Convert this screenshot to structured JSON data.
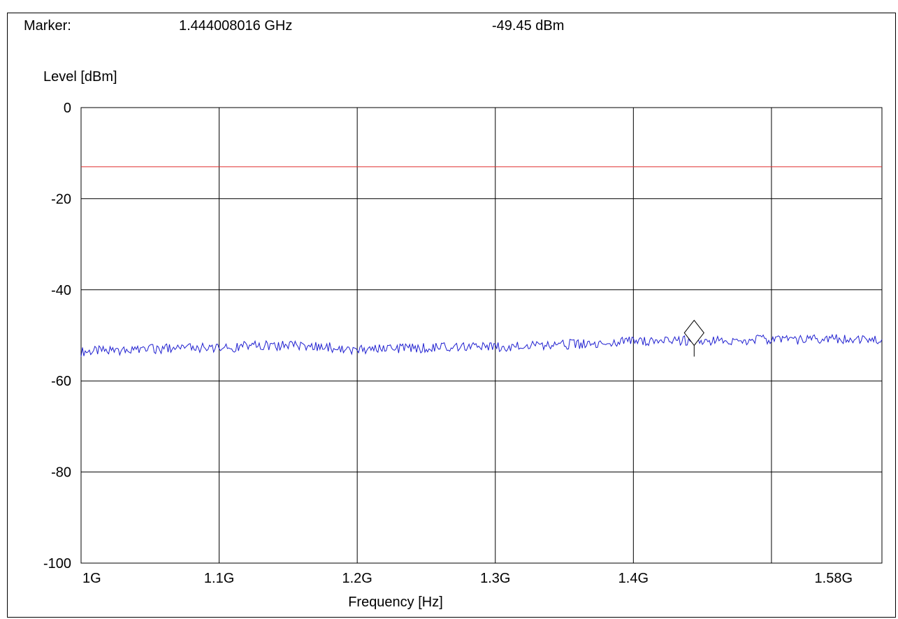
{
  "marker": {
    "label": "Marker:",
    "frequency": "1.444008016 GHz",
    "level": "-49.45 dBm",
    "frequency_ghz": 1.444008016,
    "level_dbm": -49.45
  },
  "chart_data": {
    "type": "line",
    "title": "",
    "xlabel": "Frequency [Hz]",
    "ylabel": "Level [dBm]",
    "xlim_ghz": [
      1.0,
      1.58
    ],
    "ylim": [
      -100,
      0
    ],
    "x_ticks": [
      {
        "value": 1.0,
        "label": "1G"
      },
      {
        "value": 1.1,
        "label": "1.1G"
      },
      {
        "value": 1.2,
        "label": "1.2G"
      },
      {
        "value": 1.3,
        "label": "1.3G"
      },
      {
        "value": 1.4,
        "label": "1.4G"
      },
      {
        "value": 1.58,
        "label": "1.58G"
      }
    ],
    "x_gridlines": [
      1.1,
      1.2,
      1.3,
      1.4,
      1.5
    ],
    "y_ticks": [
      0,
      -20,
      -40,
      -60,
      -80,
      -100
    ],
    "grid": true,
    "limit_line": {
      "value_dbm": -13,
      "color": "#e03030"
    },
    "series": [
      {
        "color": "#2020d0",
        "x_ghz": [
          1.0,
          1.02,
          1.04,
          1.06,
          1.08,
          1.1,
          1.12,
          1.14,
          1.16,
          1.18,
          1.2,
          1.22,
          1.24,
          1.26,
          1.28,
          1.3,
          1.32,
          1.34,
          1.36,
          1.38,
          1.4,
          1.42,
          1.44,
          1.46,
          1.48,
          1.5,
          1.52,
          1.54,
          1.56,
          1.58
        ],
        "y_dbm": [
          -53.6,
          -53.3,
          -53.2,
          -53.0,
          -52.7,
          -52.9,
          -52.4,
          -52.2,
          -52.4,
          -52.6,
          -53.3,
          -53.0,
          -52.8,
          -52.7,
          -52.3,
          -52.5,
          -52.3,
          -52.1,
          -51.9,
          -51.6,
          -51.3,
          -51.2,
          -51.1,
          -51.3,
          -51.0,
          -50.9,
          -50.9,
          -50.8,
          -50.7,
          -50.9
        ]
      }
    ],
    "marker_symbol": "diamond",
    "marker_color": "#000000"
  }
}
